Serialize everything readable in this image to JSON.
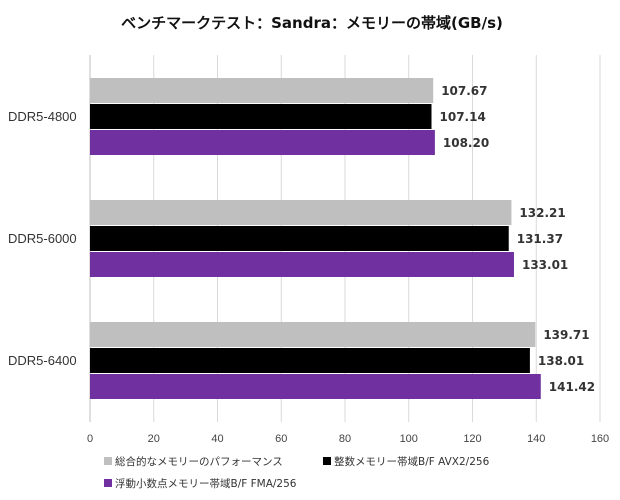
{
  "chart_data": {
    "type": "bar",
    "orientation": "horizontal",
    "title": "ベンチマークテスト：Sandra：メモリーの帯域(GB/s)",
    "categories": [
      "DDR5-4800",
      "DDR5-6000",
      "DDR5-6400"
    ],
    "series": [
      {
        "name": "総合的なメモリーのパフォーマンス",
        "color": "#bfbfbf",
        "values": [
          107.67,
          132.21,
          139.71
        ],
        "labels": [
          "107.67",
          "132.21",
          "139.71"
        ]
      },
      {
        "name": "整数メモリー帯域B/F AVX2/256",
        "color": "#000000",
        "values": [
          107.14,
          131.37,
          138.01
        ],
        "labels": [
          "107.14",
          "131.37",
          "138.01"
        ]
      },
      {
        "name": "浮動小数点メモリー帯域B/F FMA/256",
        "color": "#7030a0",
        "values": [
          108.2,
          133.01,
          141.42
        ],
        "labels": [
          "108.20",
          "133.01",
          "141.42"
        ]
      }
    ],
    "xlim": [
      0,
      160
    ],
    "xticks": [
      "0",
      "20",
      "40",
      "60",
      "80",
      "100",
      "120",
      "140",
      "160"
    ],
    "grid": true,
    "legend_position": "bottom"
  }
}
